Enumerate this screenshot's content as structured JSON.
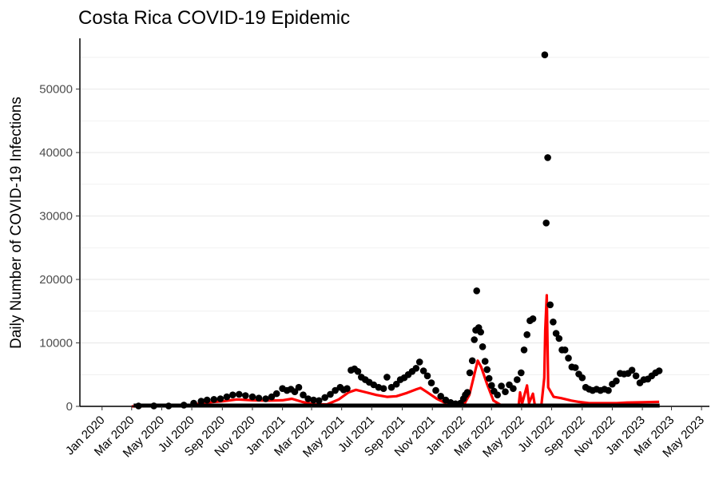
{
  "chart_data": {
    "type": "scatter",
    "title": "Costa Rica COVID-19 Epidemic",
    "xlabel": "",
    "ylabel": "Daily Number of COVID-19 Infections",
    "x_ticks": [
      "Jan 2020",
      "Mar 2020",
      "May 2020",
      "Jul 2020",
      "Sep 2020",
      "Nov 2020",
      "Jan 2021",
      "Mar 2021",
      "May 2021",
      "Jul 2021",
      "Sep 2021",
      "Nov 2021",
      "Jan 2022",
      "Mar 2022",
      "May 2022",
      "Jul 2022",
      "Sep 2022",
      "Nov 2022",
      "Jan 2023",
      "Mar 2023",
      "May 2023"
    ],
    "y_ticks": [
      0,
      10000,
      20000,
      30000,
      40000,
      50000
    ],
    "xlim": [
      "2019-11-17",
      "2023-05-17"
    ],
    "ylim": [
      0,
      58000
    ],
    "grid": "horizontal",
    "colors": {
      "points": "#000000",
      "line": "#ff0000",
      "grid": "#ebebeb"
    },
    "series": [
      {
        "type": "scatter",
        "points": [
          [
            "2020-03-15",
            60
          ],
          [
            "2020-04-15",
            80
          ],
          [
            "2020-05-15",
            60
          ],
          [
            "2020-06-15",
            200
          ],
          [
            "2020-07-05",
            500
          ],
          [
            "2020-07-20",
            800
          ],
          [
            "2020-08-01",
            1000
          ],
          [
            "2020-08-15",
            1100
          ],
          [
            "2020-08-28",
            1200
          ],
          [
            "2020-09-10",
            1500
          ],
          [
            "2020-09-22",
            1800
          ],
          [
            "2020-10-05",
            1900
          ],
          [
            "2020-10-18",
            1700
          ],
          [
            "2020-11-01",
            1500
          ],
          [
            "2020-11-14",
            1300
          ],
          [
            "2020-11-28",
            1200
          ],
          [
            "2020-12-10",
            1500
          ],
          [
            "2020-12-20",
            2000
          ],
          [
            "2021-01-01",
            2800
          ],
          [
            "2021-01-10",
            2500
          ],
          [
            "2021-01-18",
            2700
          ],
          [
            "2021-01-26",
            2300
          ],
          [
            "2021-02-03",
            3000
          ],
          [
            "2021-02-12",
            1800
          ],
          [
            "2021-02-22",
            1200
          ],
          [
            "2021-03-05",
            1000
          ],
          [
            "2021-03-16",
            900
          ],
          [
            "2021-03-28",
            1400
          ],
          [
            "2021-04-08",
            1900
          ],
          [
            "2021-04-18",
            2500
          ],
          [
            "2021-04-28",
            3000
          ],
          [
            "2021-05-05",
            2600
          ],
          [
            "2021-05-12",
            2800
          ],
          [
            "2021-05-20",
            5700
          ],
          [
            "2021-05-27",
            5900
          ],
          [
            "2021-06-03",
            5500
          ],
          [
            "2021-06-10",
            4600
          ],
          [
            "2021-06-18",
            4200
          ],
          [
            "2021-06-26",
            3800
          ],
          [
            "2021-07-05",
            3400
          ],
          [
            "2021-07-15",
            3000
          ],
          [
            "2021-07-25",
            2800
          ],
          [
            "2021-08-01",
            4600
          ],
          [
            "2021-08-10",
            3000
          ],
          [
            "2021-08-20",
            3500
          ],
          [
            "2021-08-28",
            4200
          ],
          [
            "2021-09-05",
            4500
          ],
          [
            "2021-09-13",
            5000
          ],
          [
            "2021-09-21",
            5500
          ],
          [
            "2021-09-29",
            6000
          ],
          [
            "2021-10-06",
            7000
          ],
          [
            "2021-10-14",
            5600
          ],
          [
            "2021-10-22",
            4800
          ],
          [
            "2021-10-30",
            3700
          ],
          [
            "2021-11-08",
            2500
          ],
          [
            "2021-11-18",
            1600
          ],
          [
            "2021-11-28",
            1000
          ],
          [
            "2021-12-08",
            600
          ],
          [
            "2021-12-18",
            400
          ],
          [
            "2021-12-28",
            500
          ],
          [
            "2022-01-03",
            1200
          ],
          [
            "2022-01-07",
            1800
          ],
          [
            "2022-01-11",
            2200
          ],
          [
            "2022-01-16",
            5300
          ],
          [
            "2022-01-21",
            7200
          ],
          [
            "2022-01-25",
            10500
          ],
          [
            "2022-01-28",
            12000
          ],
          [
            "2022-01-30",
            18200
          ],
          [
            "2022-02-03",
            12400
          ],
          [
            "2022-02-07",
            11700
          ],
          [
            "2022-02-11",
            9400
          ],
          [
            "2022-02-16",
            7100
          ],
          [
            "2022-02-20",
            5800
          ],
          [
            "2022-02-24",
            4400
          ],
          [
            "2022-03-01",
            3300
          ],
          [
            "2022-03-06",
            2400
          ],
          [
            "2022-03-13",
            1800
          ],
          [
            "2022-03-21",
            3200
          ],
          [
            "2022-03-29",
            2300
          ],
          [
            "2022-04-06",
            3400
          ],
          [
            "2022-04-14",
            2800
          ],
          [
            "2022-04-22",
            4200
          ],
          [
            "2022-04-30",
            5300
          ],
          [
            "2022-05-06",
            8900
          ],
          [
            "2022-05-12",
            11300
          ],
          [
            "2022-05-18",
            13500
          ],
          [
            "2022-05-24",
            13800
          ],
          [
            "2022-06-17",
            55400
          ],
          [
            "2022-06-20",
            28900
          ],
          [
            "2022-06-23",
            39200
          ],
          [
            "2022-06-28",
            16000
          ],
          [
            "2022-07-04",
            13300
          ],
          [
            "2022-07-10",
            11500
          ],
          [
            "2022-07-16",
            10700
          ],
          [
            "2022-07-22",
            8900
          ],
          [
            "2022-07-28",
            8900
          ],
          [
            "2022-08-04",
            7600
          ],
          [
            "2022-08-11",
            6200
          ],
          [
            "2022-08-18",
            6100
          ],
          [
            "2022-08-25",
            5100
          ],
          [
            "2022-09-01",
            4500
          ],
          [
            "2022-09-08",
            3000
          ],
          [
            "2022-09-15",
            2700
          ],
          [
            "2022-09-22",
            2500
          ],
          [
            "2022-09-30",
            2700
          ],
          [
            "2022-10-08",
            2500
          ],
          [
            "2022-10-16",
            2700
          ],
          [
            "2022-10-24",
            2500
          ],
          [
            "2022-11-01",
            3500
          ],
          [
            "2022-11-09",
            4000
          ],
          [
            "2022-11-17",
            5200
          ],
          [
            "2022-11-25",
            5100
          ],
          [
            "2022-12-03",
            5200
          ],
          [
            "2022-12-11",
            5700
          ],
          [
            "2022-12-19",
            4800
          ],
          [
            "2022-12-27",
            3700
          ],
          [
            "2023-01-04",
            4200
          ],
          [
            "2023-01-12",
            4300
          ],
          [
            "2023-01-20",
            4800
          ],
          [
            "2023-01-28",
            5300
          ],
          [
            "2023-02-04",
            5600
          ]
        ]
      },
      {
        "type": "line",
        "points": [
          [
            "2020-03-01",
            0
          ],
          [
            "2020-06-01",
            50
          ],
          [
            "2020-07-01",
            250
          ],
          [
            "2020-08-01",
            600
          ],
          [
            "2020-09-01",
            800
          ],
          [
            "2020-10-01",
            1100
          ],
          [
            "2020-11-01",
            950
          ],
          [
            "2020-12-01",
            900
          ],
          [
            "2021-01-01",
            950
          ],
          [
            "2021-01-20",
            1200
          ],
          [
            "2021-02-10",
            700
          ],
          [
            "2021-03-05",
            350
          ],
          [
            "2021-04-01",
            300
          ],
          [
            "2021-04-25",
            1100
          ],
          [
            "2021-05-15",
            2200
          ],
          [
            "2021-05-30",
            2600
          ],
          [
            "2021-06-20",
            2200
          ],
          [
            "2021-07-10",
            1800
          ],
          [
            "2021-08-01",
            1500
          ],
          [
            "2021-08-20",
            1600
          ],
          [
            "2021-09-10",
            2100
          ],
          [
            "2021-09-30",
            2700
          ],
          [
            "2021-10-08",
            2900
          ],
          [
            "2021-10-20",
            2300
          ],
          [
            "2021-11-10",
            1200
          ],
          [
            "2021-12-01",
            400
          ],
          [
            "2021-12-25",
            100
          ],
          [
            "2022-01-05",
            400
          ],
          [
            "2022-01-15",
            1800
          ],
          [
            "2022-01-25",
            5000
          ],
          [
            "2022-02-01",
            7200
          ],
          [
            "2022-02-08",
            6200
          ],
          [
            "2022-02-20",
            3500
          ],
          [
            "2022-03-05",
            900
          ],
          [
            "2022-03-20",
            200
          ],
          [
            "2022-04-10",
            100
          ],
          [
            "2022-04-25",
            150
          ],
          [
            "2022-04-28",
            2200
          ],
          [
            "2022-05-02",
            400
          ],
          [
            "2022-05-12",
            3300
          ],
          [
            "2022-05-16",
            500
          ],
          [
            "2022-05-24",
            2000
          ],
          [
            "2022-05-28",
            100
          ],
          [
            "2022-06-10",
            100
          ],
          [
            "2022-06-16",
            4500
          ],
          [
            "2022-06-18",
            12000
          ],
          [
            "2022-06-21",
            17500
          ],
          [
            "2022-06-24",
            3000
          ],
          [
            "2022-07-05",
            1500
          ],
          [
            "2022-07-20",
            1300
          ],
          [
            "2022-08-10",
            900
          ],
          [
            "2022-08-25",
            700
          ],
          [
            "2022-09-15",
            500
          ],
          [
            "2022-10-15",
            500
          ],
          [
            "2022-11-10",
            500
          ],
          [
            "2022-12-01",
            600
          ],
          [
            "2023-01-01",
            650
          ],
          [
            "2023-02-04",
            700
          ]
        ]
      }
    ]
  }
}
